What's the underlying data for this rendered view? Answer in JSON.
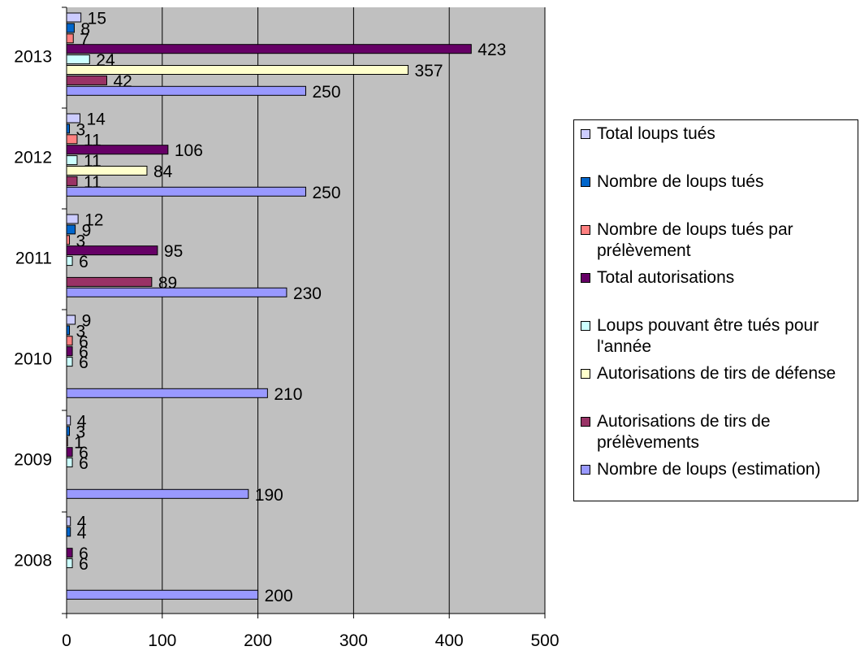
{
  "chart_data": {
    "type": "bar",
    "orientation": "horizontal",
    "categories": [
      "2008",
      "2009",
      "2010",
      "2011",
      "2012",
      "2013"
    ],
    "xlim": [
      0,
      500
    ],
    "xticks": [
      0,
      100,
      200,
      300,
      400,
      500
    ],
    "grid": true,
    "legend_position": "right",
    "series": [
      {
        "name": "Total loups tués",
        "color": "#ccccff",
        "values": [
          4,
          4,
          9,
          12,
          14,
          15
        ],
        "labels": [
          "4",
          "4",
          "9",
          "12",
          "14",
          "15"
        ]
      },
      {
        "name": "Nombre de loups tués",
        "color": "#0066cc",
        "values": [
          4,
          3,
          3,
          9,
          3,
          8
        ],
        "labels": [
          "4",
          "3",
          "3",
          "9",
          "3",
          "8"
        ]
      },
      {
        "name": "Nombre de loups tués par prélèvement",
        "color": "#ff8080",
        "values": [
          null,
          1,
          6,
          3,
          11,
          7
        ],
        "labels": [
          "",
          "1",
          "6",
          "3",
          "11",
          "7"
        ]
      },
      {
        "name": "Total autorisations",
        "color": "#660066",
        "values": [
          6,
          6,
          6,
          95,
          106,
          423
        ],
        "labels": [
          "6",
          "6",
          "6",
          "95",
          "106",
          "423"
        ]
      },
      {
        "name": "Loups pouvant être tués pour l'année",
        "color": "#ccffff",
        "values": [
          6,
          6,
          6,
          6,
          11,
          24
        ],
        "labels": [
          "6",
          "6",
          "6",
          "6",
          "11",
          "24"
        ]
      },
      {
        "name": "Autorisations de tirs de défense",
        "color": "#ffffcc",
        "values": [
          null,
          null,
          null,
          null,
          84,
          357
        ],
        "labels": [
          "",
          "",
          "",
          "",
          "84",
          "357"
        ]
      },
      {
        "name": "Autorisations de tirs de prélèvements",
        "color": "#993366",
        "values": [
          null,
          null,
          null,
          89,
          11,
          42
        ],
        "labels": [
          "",
          "",
          "",
          "89",
          "11",
          "42"
        ]
      },
      {
        "name": "Nombre de loups (estimation)",
        "color": "#9999ff",
        "values": [
          200,
          190,
          210,
          230,
          250,
          250
        ],
        "labels": [
          "200",
          "190",
          "210",
          "230",
          "250",
          "250"
        ]
      }
    ]
  },
  "legend": {
    "items": [
      {
        "label": "Total loups tués",
        "color": "#ccccff"
      },
      {
        "label": "Nombre de loups tués",
        "color": "#0066cc"
      },
      {
        "label": "Nombre de loups tués par prélèvement",
        "color": "#ff8080"
      },
      {
        "label": "Total autorisations",
        "color": "#660066"
      },
      {
        "label": "Loups pouvant être tués pour l'année",
        "color": "#ccffff"
      },
      {
        "label": "Autorisations de tirs de défense",
        "color": "#ffffcc"
      },
      {
        "label": "Autorisations de tirs de prélèvements",
        "color": "#993366"
      },
      {
        "label": "Nombre de loups (estimation)",
        "color": "#9999ff"
      }
    ]
  },
  "colors": {
    "plot_background": "#c0c0c0",
    "gridline": "#000000"
  }
}
